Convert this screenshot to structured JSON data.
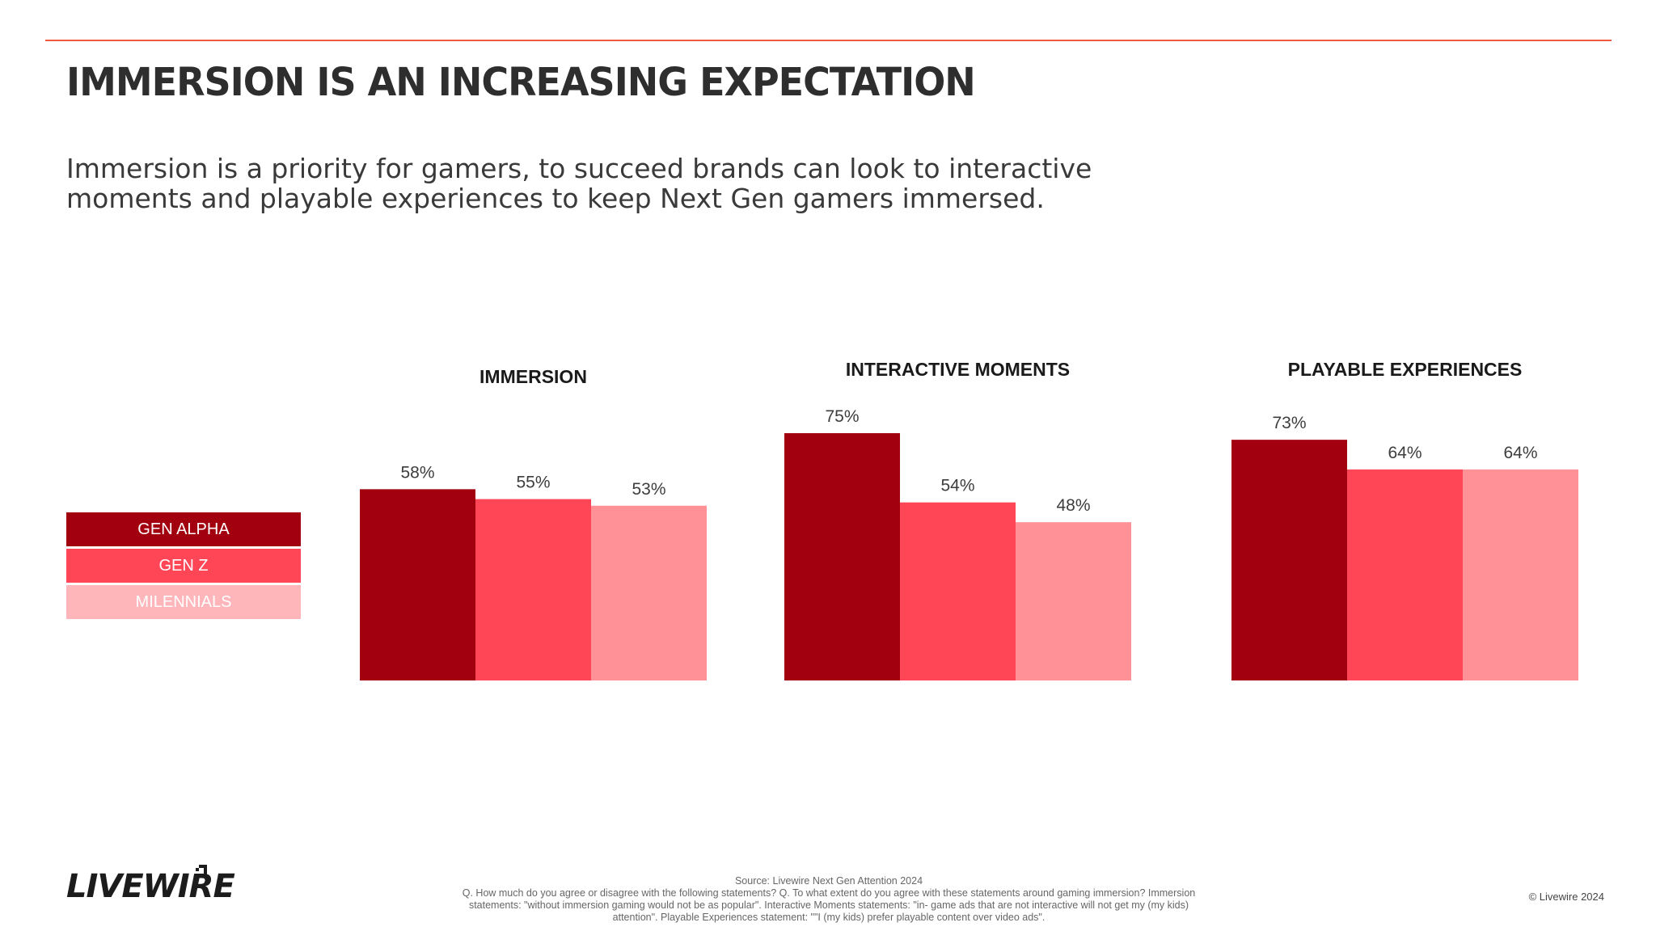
{
  "header": {
    "title": "IMMERSION IS AN INCREASING EXPECTATION",
    "subtitle": "Immersion is a priority for gamers, to succeed brands can look to interactive moments and playable experiences to keep Next Gen gamers immersed."
  },
  "colors": {
    "accent_rule": "#ef5b3f",
    "gen_alpha": "#a3000f",
    "gen_z": "#ff4656",
    "millennials": "#ff9197",
    "legend_millennials": "#ffb6ba"
  },
  "legend": [
    {
      "label": "GEN ALPHA"
    },
    {
      "label": "GEN Z"
    },
    {
      "label": "MILENNIALS"
    }
  ],
  "chart_data": [
    {
      "type": "bar",
      "title": "IMMERSION",
      "categories": [
        "GEN ALPHA",
        "GEN Z",
        "MILENNIALS"
      ],
      "values": [
        58,
        55,
        53
      ],
      "labels": [
        "58%",
        "55%",
        "53%"
      ]
    },
    {
      "type": "bar",
      "title": "INTERACTIVE MOMENTS",
      "categories": [
        "GEN ALPHA",
        "GEN Z",
        "MILENNIALS"
      ],
      "values": [
        75,
        54,
        48
      ],
      "labels": [
        "75%",
        "54%",
        "48%"
      ]
    },
    {
      "type": "bar",
      "title": "PLAYABLE EXPERIENCES",
      "categories": [
        "GEN ALPHA",
        "GEN Z",
        "MILENNIALS"
      ],
      "values": [
        73,
        64,
        64
      ],
      "labels": [
        "73%",
        "64%",
        "64%"
      ]
    }
  ],
  "footer": {
    "logo": "LIVEWIRE",
    "source_lines": [
      "Source: Livewire Next Gen Attention 2024",
      "Q. How much do you agree or disagree with the following statements? Q. To what extent do you agree with these statements around gaming immersion? Immersion",
      "statements: \"without immersion gaming would not be as popular\". Interactive Moments statements: \"in- game ads that are not interactive will not get my (my kids)",
      "attention\". Playable Experiences statement: \"\"I (my kids) prefer playable content over video ads\"."
    ],
    "copyright": "© Livewire 2024"
  }
}
